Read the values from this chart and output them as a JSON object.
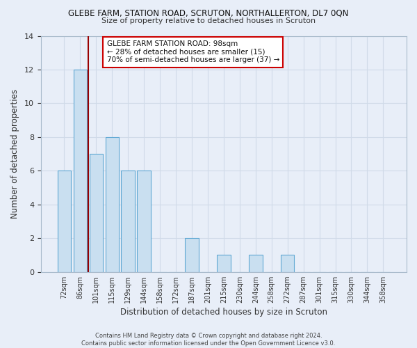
{
  "title": "GLEBE FARM, STATION ROAD, SCRUTON, NORTHALLERTON, DL7 0QN",
  "subtitle": "Size of property relative to detached houses in Scruton",
  "xlabel": "Distribution of detached houses by size in Scruton",
  "ylabel": "Number of detached properties",
  "bar_labels": [
    "72sqm",
    "86sqm",
    "101sqm",
    "115sqm",
    "129sqm",
    "144sqm",
    "158sqm",
    "172sqm",
    "187sqm",
    "201sqm",
    "215sqm",
    "230sqm",
    "244sqm",
    "258sqm",
    "272sqm",
    "287sqm",
    "301sqm",
    "315sqm",
    "330sqm",
    "344sqm",
    "358sqm"
  ],
  "bar_heights": [
    6,
    12,
    7,
    8,
    6,
    6,
    0,
    0,
    2,
    0,
    1,
    0,
    1,
    0,
    1,
    0,
    0,
    0,
    0,
    0,
    0
  ],
  "bar_color": "#c9dff0",
  "bar_edge_color": "#5fa8d3",
  "grid_color": "#d0dae8",
  "background_color": "#e8eef8",
  "red_line_x": 1.5,
  "annotation_title": "GLEBE FARM STATION ROAD: 98sqm",
  "annotation_line1": "← 28% of detached houses are smaller (15)",
  "annotation_line2": "70% of semi-detached houses are larger (37) →",
  "annotation_box_color": "#ffffff",
  "annotation_box_edge": "#cc0000",
  "red_line_color": "#990000",
  "ylim": [
    0,
    14
  ],
  "yticks": [
    0,
    2,
    4,
    6,
    8,
    10,
    12,
    14
  ],
  "footer_line1": "Contains HM Land Registry data © Crown copyright and database right 2024.",
  "footer_line2": "Contains public sector information licensed under the Open Government Licence v3.0."
}
